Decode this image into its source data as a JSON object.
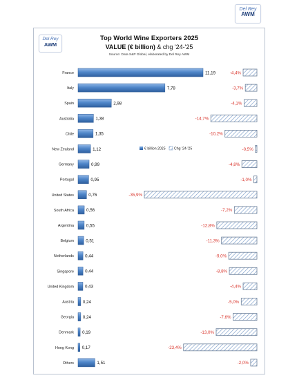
{
  "logo": {
    "line1": "Del Rey",
    "line2": "AWM"
  },
  "chart_data": {
    "type": "bar",
    "title": "Top World Wine Exporters 2025",
    "subtitle_bold": "VALUE (€ billion)",
    "subtitle_rest": " & chg '24-'25",
    "source": "Source: Data S&P Global, elaborated by Del Rey AWM",
    "categories": [
      "France",
      "Italy",
      "Spain",
      "Australia",
      "Chile",
      "New Zealand",
      "Germany",
      "Portugal",
      "United States",
      "South Africa",
      "Argentina",
      "Belgium",
      "Netherlands",
      "Singapore",
      "United Kingdom",
      "Austria",
      "Georgia",
      "Denmark",
      "Hong Kong",
      "Others"
    ],
    "series": [
      {
        "name": "€ billion 2025",
        "values": [
          11.19,
          7.78,
          2.98,
          1.38,
          1.35,
          1.12,
          0.99,
          0.95,
          0.76,
          0.56,
          0.55,
          0.51,
          0.44,
          0.44,
          0.43,
          0.24,
          0.24,
          0.19,
          0.17,
          1.51
        ],
        "labels": [
          "11,19",
          "7,78",
          "2,98",
          "1,38",
          "1,35",
          "1,12",
          "0,99",
          "0,95",
          "0,76",
          "0,56",
          "0,55",
          "0,51",
          "0,44",
          "0,44",
          "0,43",
          "0,24",
          "0,24",
          "0,19",
          "0,17",
          "1,51"
        ]
      },
      {
        "name": "Chg '24-'25",
        "values": [
          -4.4,
          -3.7,
          -4.1,
          -14.7,
          -10.2,
          -0.5,
          -4.8,
          -1.0,
          -35.9,
          -7.2,
          -12.8,
          -11.3,
          -9.0,
          -8.8,
          -4.4,
          -5.0,
          -7.6,
          -13.0,
          -23.4,
          -2.0
        ],
        "labels": [
          "-4,4%",
          "-3,7%",
          "-4,1%",
          "-14,7%",
          "-10,2%",
          "-0,5%",
          "-4,8%",
          "-1,0%",
          "-35,9%",
          "-7,2%",
          "-12,8%",
          "-11,3%",
          "-9,0%",
          "-8,8%",
          "-4,4%",
          "-5,0%",
          "-7,6%",
          "-13,0%",
          "-23,4%",
          "-2,0%"
        ]
      }
    ],
    "colors": {
      "value_bar": "#4f86c9",
      "change_label": "#d9342b",
      "change_hatch": "#7a9cc9"
    },
    "legend": "center"
  }
}
